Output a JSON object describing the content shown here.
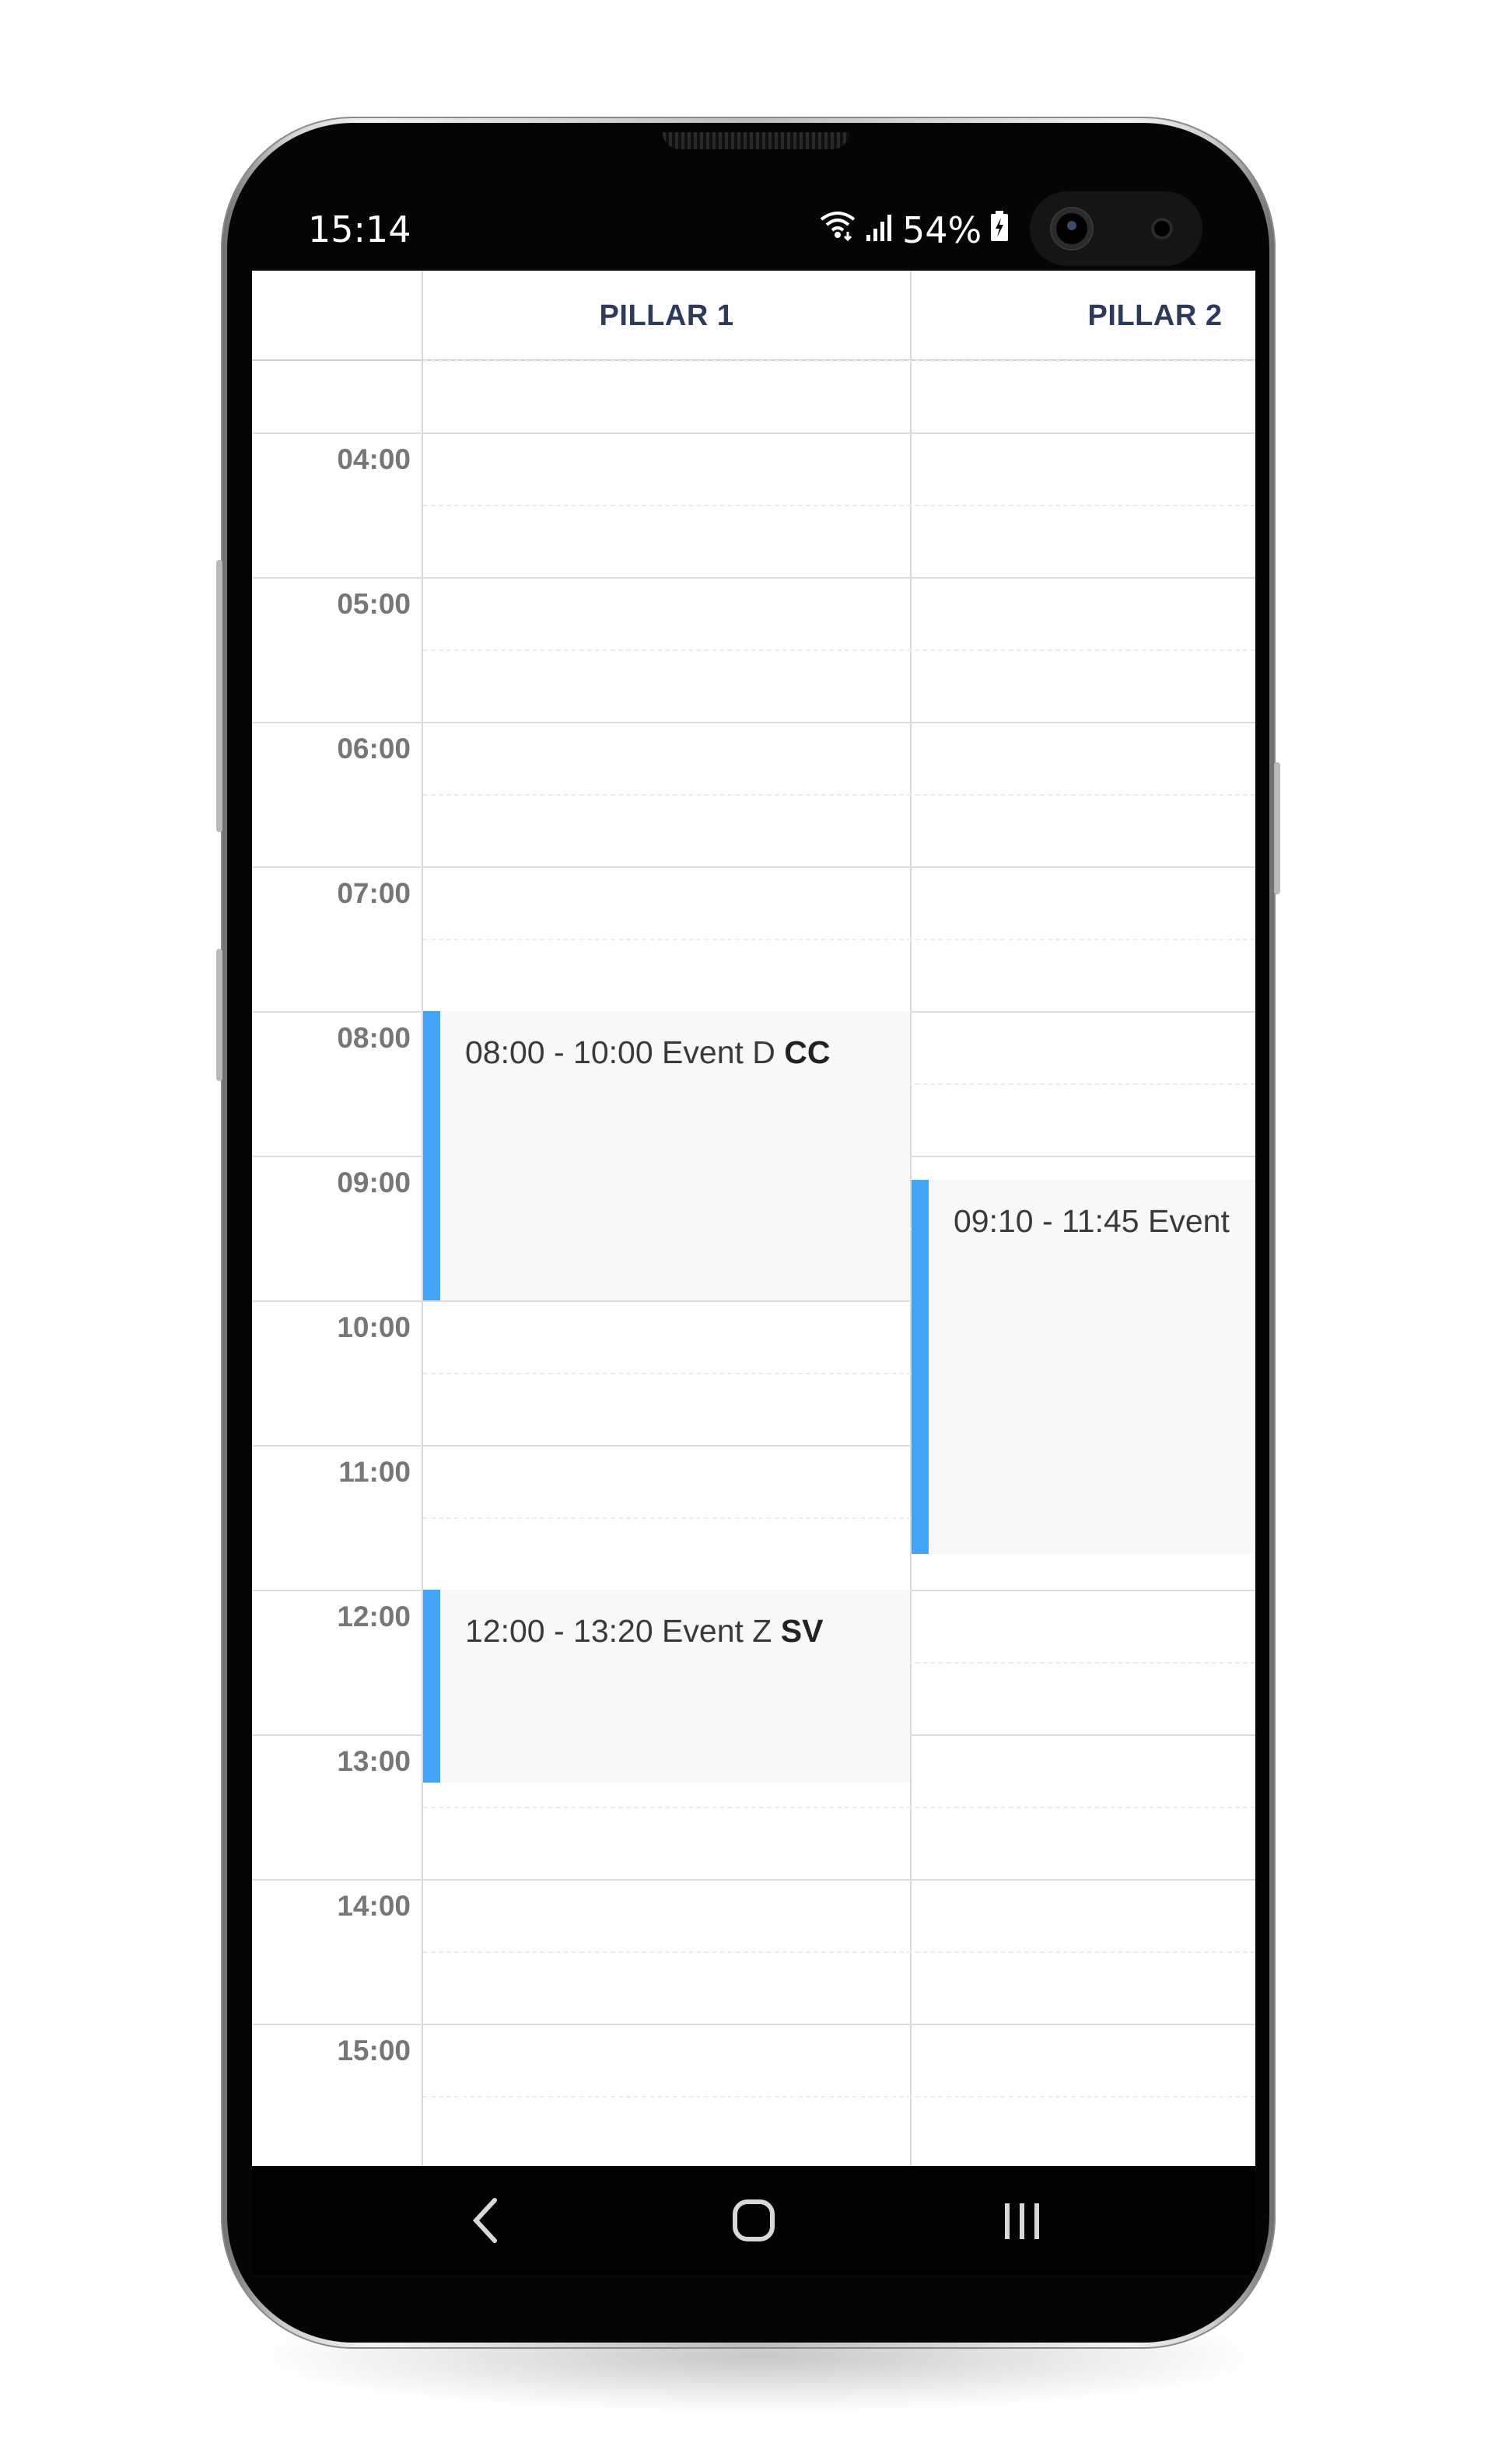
{
  "status_bar": {
    "time": "15:14",
    "battery": "54%",
    "icons": [
      "wifi-icon",
      "signal-icon",
      "battery-charging-icon"
    ]
  },
  "calendar": {
    "columns": [
      {
        "label": "PILLAR 1"
      },
      {
        "label": "PILLAR 2"
      }
    ],
    "hours": [
      "04:00",
      "05:00",
      "06:00",
      "07:00",
      "08:00",
      "09:00",
      "10:00",
      "11:00",
      "12:00",
      "13:00",
      "14:00",
      "15:00"
    ],
    "events": [
      {
        "column": 0,
        "time_range": "08:00 - 10:00",
        "name": "Event D",
        "tag": "CC"
      },
      {
        "column": 1,
        "time_range": "09:10 - 11:45",
        "name": "Event",
        "tag": ""
      },
      {
        "column": 0,
        "time_range": "12:00 - 13:20",
        "name": "Event Z",
        "tag": "SV"
      }
    ]
  },
  "navigation": {
    "buttons": [
      "back-icon",
      "home-icon",
      "recent-apps-icon"
    ]
  },
  "colors": {
    "accent": "#42a5f5",
    "header_text": "#2c3a5e",
    "event_bg": "#f8f8f8"
  }
}
